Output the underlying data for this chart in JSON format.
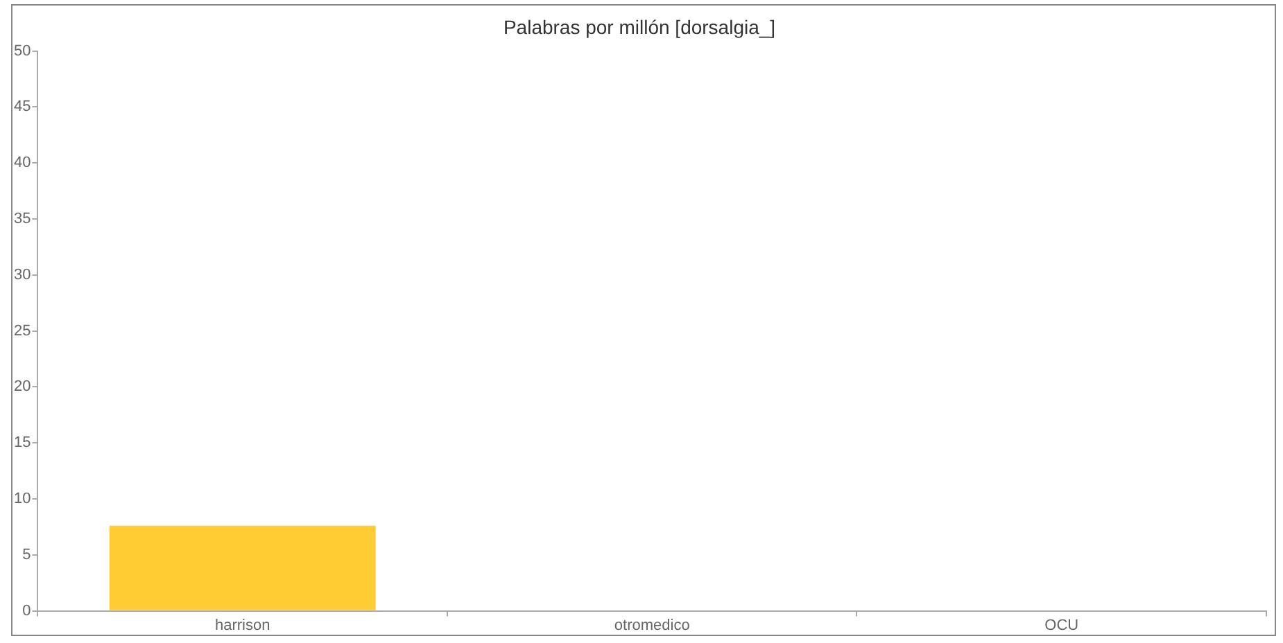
{
  "chart_data": {
    "type": "bar",
    "title": "Palabras por millón [dorsalgia_]",
    "categories": [
      "harrison",
      "otromedico",
      "OCU"
    ],
    "values": [
      7.6,
      0,
      0
    ],
    "color": "#ffcc33",
    "ylim": [
      0,
      50
    ],
    "yticks": [
      0,
      5,
      10,
      15,
      20,
      25,
      30,
      35,
      40,
      45,
      50
    ],
    "grid": false,
    "legend": false
  }
}
